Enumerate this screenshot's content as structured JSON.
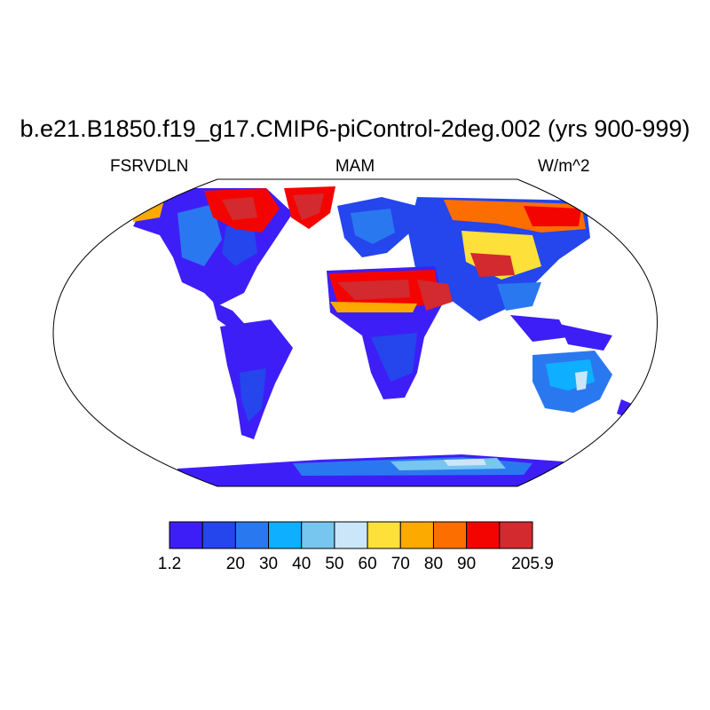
{
  "title": "b.e21.B1850.f19_g17.CMIP6-piControl-2deg.002 (yrs 900-999)",
  "left_label": "FSRVDLN",
  "center_label": "MAM",
  "right_label": "W/m^2",
  "colorbar": {
    "colors": [
      "#3e1ef7",
      "#2446ec",
      "#2a78f0",
      "#0fafff",
      "#76c6f0",
      "#cae6f8",
      "#fde03a",
      "#fcaa00",
      "#fc6e00",
      "#f40400",
      "#d22a2e"
    ],
    "labels": [
      {
        "text": "1.2",
        "boundary": 0
      },
      {
        "text": "20",
        "boundary": 2
      },
      {
        "text": "30",
        "boundary": 3
      },
      {
        "text": "40",
        "boundary": 4
      },
      {
        "text": "50",
        "boundary": 5
      },
      {
        "text": "60",
        "boundary": 6
      },
      {
        "text": "70",
        "boundary": 7
      },
      {
        "text": "80",
        "boundary": 8
      },
      {
        "text": "90",
        "boundary": 9
      },
      {
        "text": "205.9",
        "boundary": 11
      }
    ]
  }
}
